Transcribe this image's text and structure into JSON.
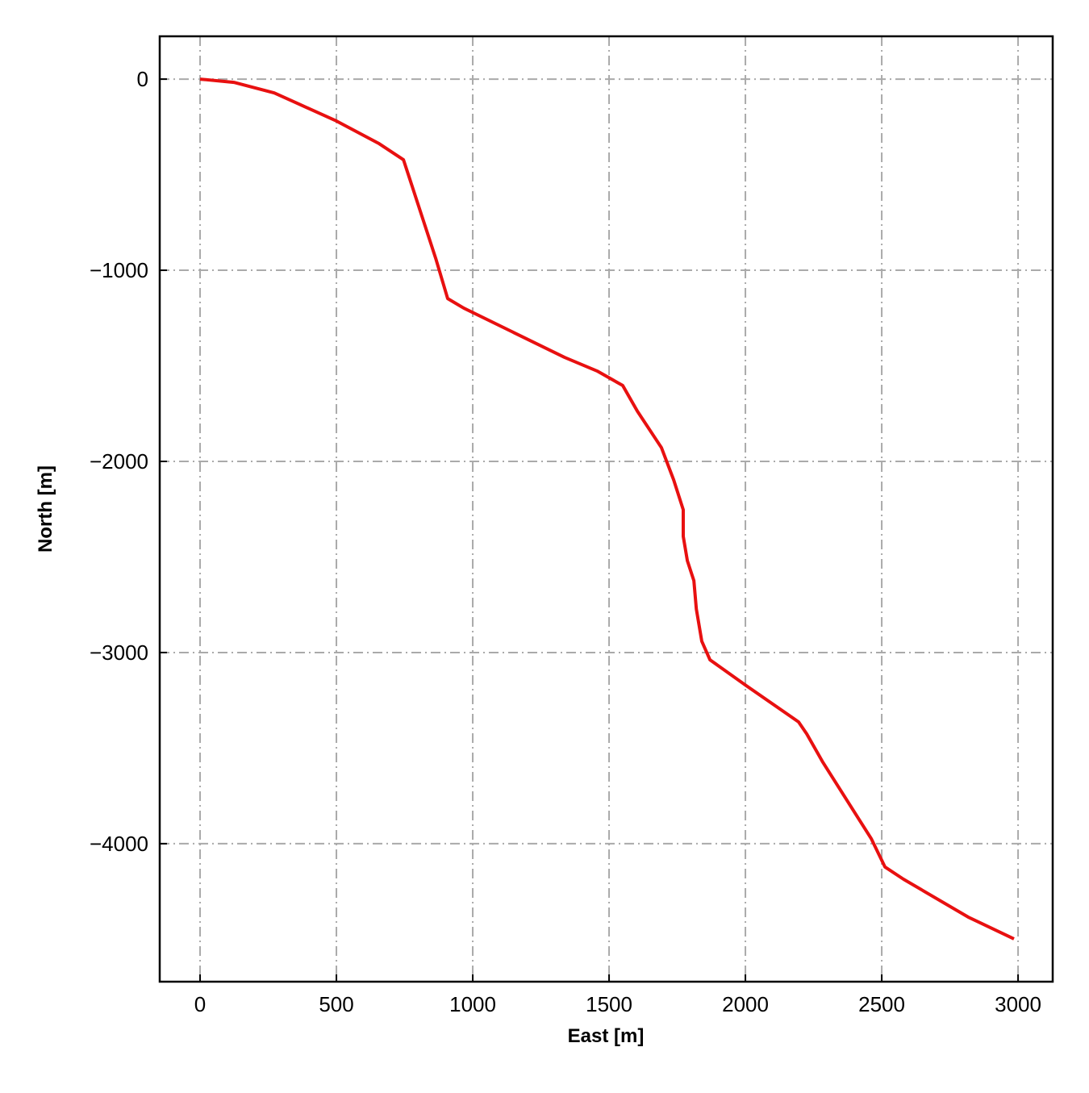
{
  "chart_data": {
    "type": "line",
    "xlabel": "East [m]",
    "ylabel": "North [m]",
    "x": [
      0,
      124,
      272,
      500,
      657,
      746,
      864,
      908,
      967,
      1337,
      1456,
      1550,
      1604,
      1692,
      1737,
      1772,
      1772,
      1787,
      1811,
      1820,
      1840,
      1870,
      2003,
      2195,
      2225,
      2284,
      2462,
      2512,
      2580,
      2817,
      2985
    ],
    "series": [
      {
        "color": "#e81010",
        "values": [
          0,
          -17,
          -72,
          -219,
          -338,
          -422,
          -937,
          -1148,
          -1198,
          -1456,
          -1527,
          -1603,
          -1738,
          -1928,
          -2097,
          -2253,
          -2392,
          -2519,
          -2624,
          -2772,
          -2941,
          -3038,
          -3173,
          -3363,
          -3426,
          -3574,
          -3975,
          -4122,
          -4186,
          -4384,
          -4498
        ]
      }
    ],
    "xlim": [
      -148,
      3127
    ],
    "ylim": [
      -4722,
      224
    ],
    "xticks": [
      0,
      500,
      1000,
      1500,
      2000,
      2500,
      3000
    ],
    "yticks": [
      {
        "value": -4000,
        "label": "−4000"
      },
      {
        "value": -3000,
        "label": "−3000"
      },
      {
        "value": -2000,
        "label": "−2000"
      },
      {
        "value": -1000,
        "label": "−1000"
      },
      0
    ],
    "grid": true
  }
}
